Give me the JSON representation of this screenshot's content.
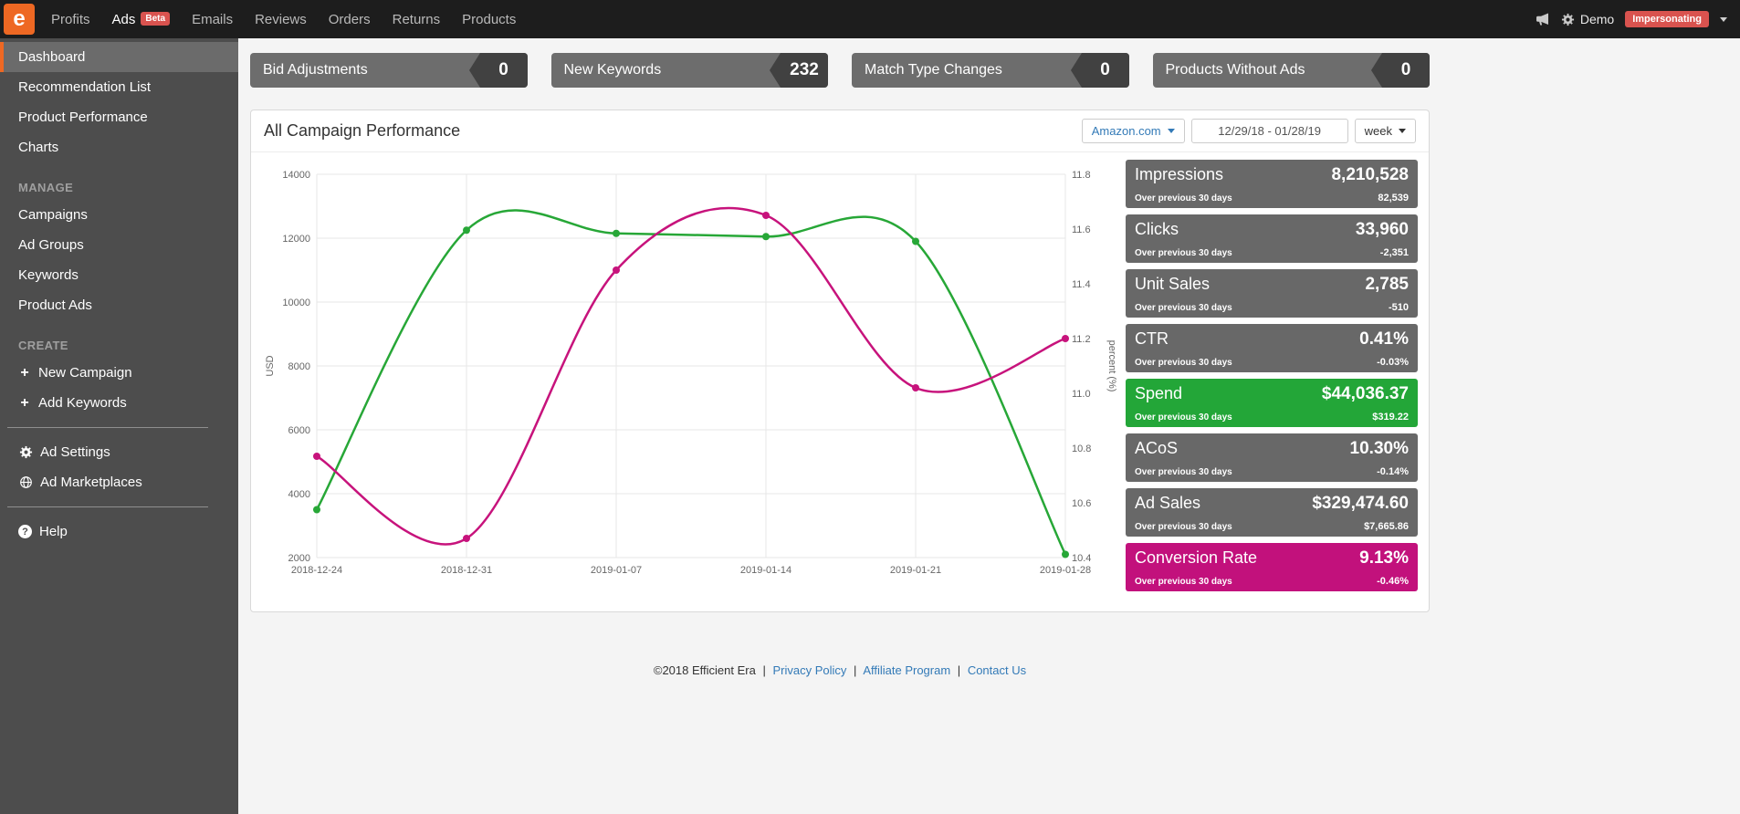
{
  "topnav": {
    "logo_letter": "e",
    "items": [
      {
        "label": "Profits"
      },
      {
        "label": "Ads",
        "badge": "Beta",
        "active": true
      },
      {
        "label": "Emails"
      },
      {
        "label": "Reviews"
      },
      {
        "label": "Orders"
      },
      {
        "label": "Returns"
      },
      {
        "label": "Products"
      }
    ],
    "user_name": "Demo",
    "impersonating_label": "Impersonating"
  },
  "sidebar": {
    "nav_items": [
      {
        "label": "Dashboard",
        "active": true
      },
      {
        "label": "Recommendation List"
      },
      {
        "label": "Product Performance"
      },
      {
        "label": "Charts"
      }
    ],
    "manage": {
      "header": "MANAGE",
      "items": [
        {
          "label": "Campaigns"
        },
        {
          "label": "Ad Groups"
        },
        {
          "label": "Keywords"
        },
        {
          "label": "Product Ads"
        }
      ]
    },
    "create": {
      "header": "CREATE",
      "items": [
        {
          "label": "New Campaign"
        },
        {
          "label": "Add Keywords"
        }
      ]
    },
    "settings_items": [
      {
        "label": "Ad Settings"
      },
      {
        "label": "Ad Marketplaces"
      }
    ],
    "help_label": "Help"
  },
  "action_cards": [
    {
      "label": "Bid Adjustments",
      "value": "0"
    },
    {
      "label": "New Keywords",
      "value": "232"
    },
    {
      "label": "Match Type Changes",
      "value": "0"
    },
    {
      "label": "Products Without Ads",
      "value": "0"
    }
  ],
  "performance_panel": {
    "title": "All Campaign Performance",
    "marketplace_button": "Amazon.com",
    "date_range": "12/29/18 - 01/28/19",
    "interval_button": "week",
    "metric_cards": [
      {
        "label": "Impressions",
        "value": "8,210,528",
        "sub_label": "Over previous 30 days",
        "delta": "82,539",
        "color": "#686868"
      },
      {
        "label": "Clicks",
        "value": "33,960",
        "sub_label": "Over previous 30 days",
        "delta": "-2,351",
        "color": "#686868"
      },
      {
        "label": "Unit Sales",
        "value": "2,785",
        "sub_label": "Over previous 30 days",
        "delta": "-510",
        "color": "#686868"
      },
      {
        "label": "CTR",
        "value": "0.41%",
        "sub_label": "Over previous 30 days",
        "delta": "-0.03%",
        "color": "#686868"
      },
      {
        "label": "Spend",
        "value": "$44,036.37",
        "sub_label": "Over previous 30 days",
        "delta": "$319.22",
        "color": "#23a638"
      },
      {
        "label": "ACoS",
        "value": "10.30%",
        "sub_label": "Over previous 30 days",
        "delta": "-0.14%",
        "color": "#686868"
      },
      {
        "label": "Ad Sales",
        "value": "$329,474.60",
        "sub_label": "Over previous 30 days",
        "delta": "$7,665.86",
        "color": "#686868"
      },
      {
        "label": "Conversion Rate",
        "value": "9.13%",
        "sub_label": "Over previous 30 days",
        "delta": "-0.46%",
        "color": "#c2117c"
      }
    ]
  },
  "chart_data": {
    "type": "line",
    "title": "All Campaign Performance",
    "x": [
      "2018-12-24",
      "2018-12-31",
      "2019-01-07",
      "2019-01-14",
      "2019-01-21",
      "2019-01-28"
    ],
    "series": [
      {
        "name": "Spend (USD)",
        "axis": "left",
        "color": "#27a737",
        "values": [
          3500,
          12250,
          12150,
          12050,
          11900,
          2100
        ]
      },
      {
        "name": "Conversion Rate (percent)",
        "axis": "right",
        "color": "#c7137c",
        "values": [
          10.77,
          10.47,
          11.45,
          11.65,
          11.02,
          11.2
        ]
      }
    ],
    "left_axis": {
      "label": "USD",
      "min": 2000,
      "max": 14000,
      "ticks": [
        2000,
        4000,
        6000,
        8000,
        10000,
        12000,
        14000
      ]
    },
    "right_axis": {
      "label": "percent (%)",
      "min": 10.4,
      "max": 11.8,
      "ticks": [
        10.4,
        10.6,
        10.8,
        11.0,
        11.2,
        11.4,
        11.6,
        11.8
      ]
    },
    "grid": true,
    "legend": "none"
  },
  "footer": {
    "copyright": "©2018 Efficient Era",
    "separator": "|",
    "links": [
      "Privacy Policy",
      "Affiliate Program",
      "Contact Us"
    ]
  },
  "colors": {
    "brand_orange": "#ee6823",
    "badge_red": "#d9534f",
    "link_blue": "#337ab7",
    "card_gray": "#686868",
    "spend_green": "#23a638",
    "conversion_magenta": "#c2117c",
    "topnav_bg": "#1d1d1d",
    "sidebar_bg": "#4d4d4d"
  }
}
